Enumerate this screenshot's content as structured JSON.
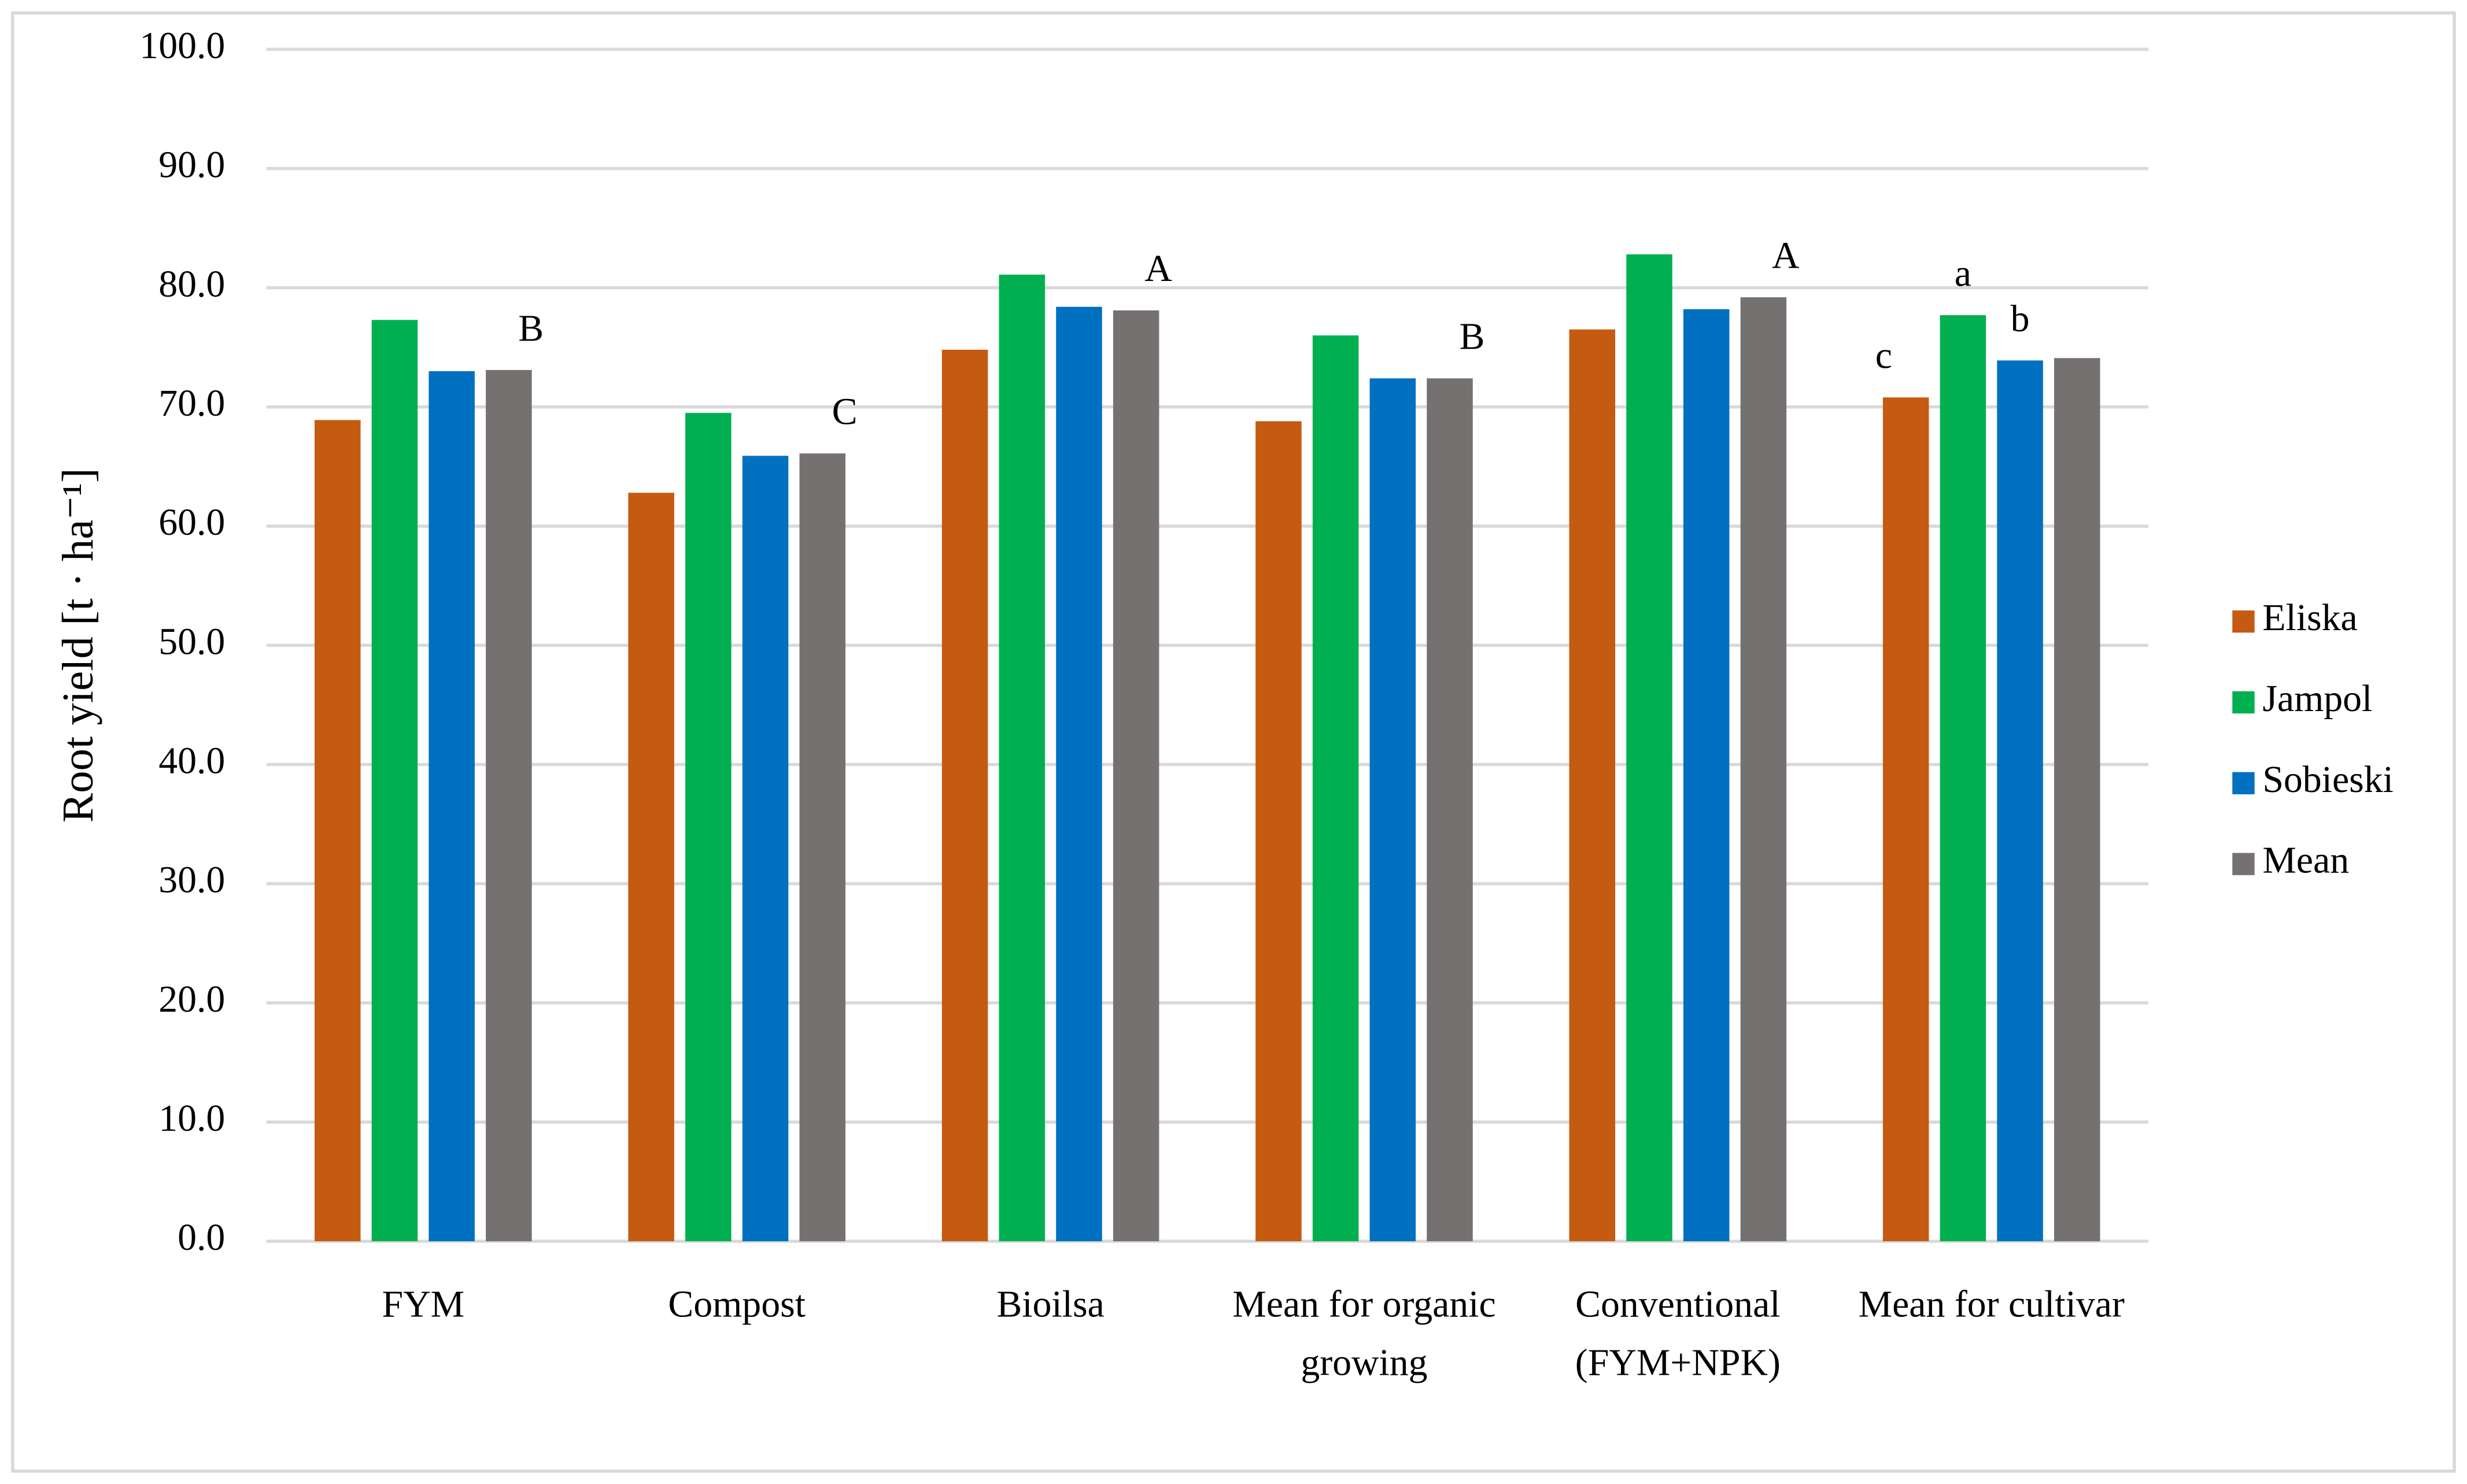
{
  "chart_data": {
    "type": "bar",
    "y_label": "Root yield [t · ha⁻¹]",
    "categories": [
      "FYM",
      "Compost",
      "Bioilsa",
      "Mean for organic growing",
      "Conventional (FYM+NPK)",
      "Mean for cultivar"
    ],
    "series": [
      {
        "name": "Eliska",
        "color": "#c55a11",
        "values": [
          68.9,
          62.8,
          74.8,
          68.8,
          76.5,
          70.8
        ],
        "letters": [
          null,
          null,
          null,
          null,
          null,
          "c"
        ]
      },
      {
        "name": "Jampol",
        "color": "#00b050",
        "values": [
          77.3,
          69.5,
          81.1,
          76.0,
          82.8,
          77.7
        ],
        "letters": [
          null,
          null,
          null,
          null,
          null,
          "a"
        ]
      },
      {
        "name": "Sobieski",
        "color": "#0070c0",
        "values": [
          73.0,
          65.9,
          78.4,
          72.4,
          78.2,
          73.9
        ],
        "letters": [
          null,
          null,
          null,
          null,
          null,
          "b"
        ]
      },
      {
        "name": "Mean",
        "color": "#767171",
        "values": [
          73.1,
          66.1,
          78.1,
          72.4,
          79.2,
          74.1
        ],
        "letters": [
          "B",
          "C",
          "A",
          "B",
          "A",
          null
        ]
      }
    ],
    "ylim": [
      0,
      100
    ],
    "yticks": [
      {
        "value": 0,
        "label": "0.0"
      },
      {
        "value": 10,
        "label": "10.0"
      },
      {
        "value": 20,
        "label": "20.0"
      },
      {
        "value": 30,
        "label": "30.0"
      },
      {
        "value": 40,
        "label": "40.0"
      },
      {
        "value": 50,
        "label": "50.0"
      },
      {
        "value": 60,
        "label": "60.0"
      },
      {
        "value": 70,
        "label": "70.0"
      },
      {
        "value": 80,
        "label": "80.0"
      },
      {
        "value": 90,
        "label": "90.0"
      },
      {
        "value": 100,
        "label": "100.0"
      }
    ],
    "grid": true,
    "legend": "right"
  }
}
